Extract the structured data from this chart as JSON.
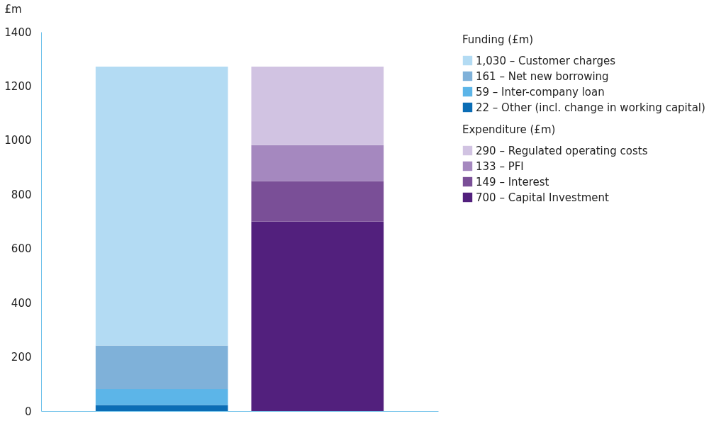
{
  "chart_data": {
    "type": "bar",
    "stacked": true,
    "ylabel": "£m",
    "legend_title": "Funding (£m)",
    "annotations": [
      "Expenditure (£m)"
    ],
    "categories": [
      null,
      null
    ],
    "ylim": [
      0,
      1400
    ],
    "yticks": [
      0,
      200,
      400,
      600,
      800,
      1000,
      1200,
      1400
    ],
    "grid": false,
    "legend": "right",
    "tick_labels": "y",
    "series": [
      {
        "name": "22 – Other (incl. change in working capital)",
        "color": "#0b6db5",
        "values": [
          22,
          null
        ]
      },
      {
        "name": "59 – Inter-company loan",
        "color": "#5cb5e8",
        "values": [
          59,
          null
        ]
      },
      {
        "name": "161 – Net new borrowing",
        "color": "#7fb1d9",
        "values": [
          161,
          null
        ]
      },
      {
        "name": "1,030 – Customer charges",
        "color": "#b3dbf3",
        "values": [
          1030,
          null
        ]
      },
      {
        "name": "700 – Capital Investment",
        "color": "#52207d",
        "values": [
          null,
          700
        ]
      },
      {
        "name": "149 – Interest",
        "color": "#7a4f97",
        "values": [
          null,
          149
        ]
      },
      {
        "name": "133 – PFI",
        "color": "#a588bf",
        "values": [
          null,
          133
        ]
      },
      {
        "name": "290 – Regulated operating costs",
        "color": "#d1c3e2",
        "values": [
          null,
          290
        ]
      }
    ]
  }
}
